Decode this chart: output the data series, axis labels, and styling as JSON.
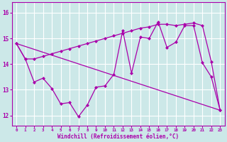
{
  "xlabel": "Windchill (Refroidissement éolien,°C)",
  "bg_color": "#cce8e8",
  "line_color": "#aa00aa",
  "grid_color": "#ffffff",
  "x_ticks": [
    0,
    1,
    2,
    3,
    4,
    5,
    6,
    7,
    8,
    9,
    10,
    11,
    12,
    13,
    14,
    15,
    16,
    17,
    18,
    19,
    20,
    21,
    22,
    23
  ],
  "y_ticks": [
    12,
    13,
    14,
    15,
    16
  ],
  "ylim": [
    11.6,
    16.4
  ],
  "xlim": [
    -0.5,
    23.5
  ],
  "line1_x": [
    0,
    1,
    2,
    3,
    4,
    5,
    6,
    7,
    8,
    9,
    10,
    11,
    12,
    13,
    14,
    15,
    16,
    17,
    18,
    19,
    20,
    21,
    22,
    23
  ],
  "line1_y": [
    14.8,
    14.2,
    14.2,
    14.3,
    14.4,
    14.5,
    14.6,
    14.7,
    14.8,
    14.9,
    15.0,
    15.1,
    15.2,
    15.3,
    15.4,
    15.45,
    15.55,
    15.55,
    15.5,
    15.55,
    15.6,
    15.5,
    14.1,
    12.2
  ],
  "line2_x": [
    0,
    1,
    2,
    3,
    4,
    5,
    6,
    7,
    8,
    9,
    10,
    11,
    12,
    13,
    14,
    15,
    16,
    17,
    18,
    19,
    20,
    21,
    22,
    23
  ],
  "line2_y": [
    14.8,
    14.2,
    13.3,
    13.45,
    13.05,
    12.45,
    12.5,
    11.95,
    12.4,
    13.1,
    13.15,
    13.6,
    15.3,
    13.65,
    15.05,
    15.0,
    15.65,
    14.65,
    14.85,
    15.5,
    15.5,
    14.05,
    13.5,
    12.2
  ],
  "line3_x": [
    0,
    23
  ],
  "line3_y": [
    14.8,
    12.2
  ]
}
